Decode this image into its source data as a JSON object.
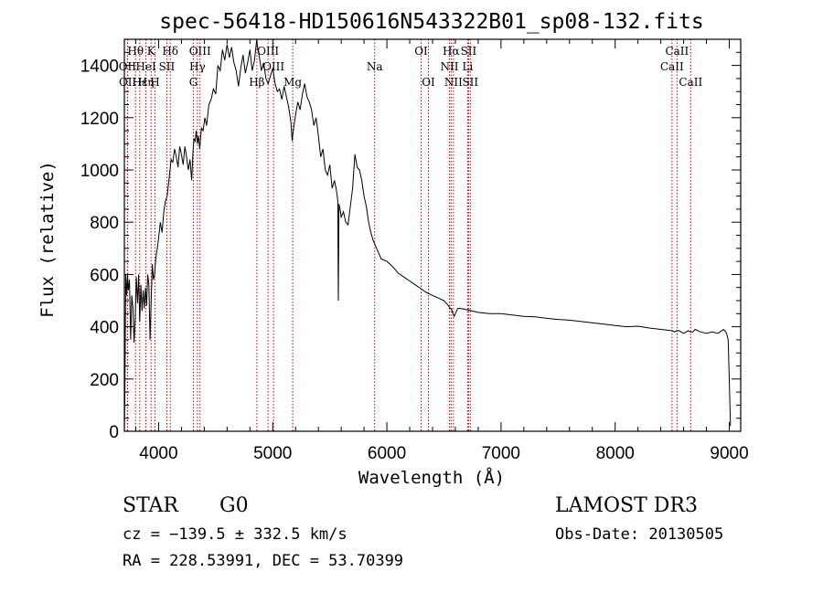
{
  "chart_data": {
    "type": "line",
    "title": "spec-56418-HD150616N543322B01_sp08-132.fits",
    "xlabel": "Wavelength (Å)",
    "ylabel": "Flux (relative)",
    "xlim": [
      3700,
      9100
    ],
    "ylim": [
      0,
      1500
    ],
    "xticks": [
      4000,
      5000,
      6000,
      7000,
      8000,
      9000
    ],
    "yticks": [
      0,
      200,
      400,
      600,
      800,
      1000,
      1200,
      1400
    ],
    "series": [
      {
        "name": "flux",
        "x": [
          3700,
          3705,
          3712,
          3720,
          3728,
          3735,
          3745,
          3755,
          3765,
          3775,
          3785,
          3795,
          3805,
          3815,
          3825,
          3835,
          3845,
          3855,
          3865,
          3875,
          3885,
          3895,
          3905,
          3915,
          3925,
          3935,
          3945,
          3955,
          3965,
          3975,
          3985,
          3995,
          4005,
          4015,
          4030,
          4045,
          4060,
          4075,
          4090,
          4100,
          4110,
          4125,
          4140,
          4155,
          4170,
          4185,
          4200,
          4215,
          4230,
          4245,
          4260,
          4275,
          4290,
          4300,
          4310,
          4320,
          4330,
          4340,
          4350,
          4360,
          4375,
          4390,
          4405,
          4420,
          4440,
          4460,
          4480,
          4500,
          4520,
          4540,
          4560,
          4580,
          4600,
          4620,
          4640,
          4660,
          4680,
          4700,
          4720,
          4740,
          4760,
          4780,
          4800,
          4820,
          4840,
          4860,
          4870,
          4880,
          4900,
          4920,
          4940,
          4960,
          4980,
          5000,
          5020,
          5040,
          5060,
          5080,
          5100,
          5120,
          5140,
          5160,
          5170,
          5180,
          5200,
          5220,
          5240,
          5260,
          5280,
          5300,
          5320,
          5340,
          5360,
          5380,
          5400,
          5420,
          5440,
          5460,
          5480,
          5500,
          5520,
          5540,
          5555,
          5565,
          5570,
          5575,
          5580,
          5590,
          5600,
          5620,
          5640,
          5660,
          5680,
          5700,
          5720,
          5740,
          5760,
          5780,
          5800,
          5820,
          5840,
          5860,
          5880,
          5900,
          5920,
          5950,
          6000,
          6050,
          6100,
          6150,
          6200,
          6250,
          6300,
          6350,
          6400,
          6450,
          6500,
          6540,
          6555,
          6565,
          6575,
          6590,
          6620,
          6650,
          6700,
          6750,
          6800,
          6900,
          7000,
          7100,
          7200,
          7300,
          7400,
          7500,
          7600,
          7700,
          7800,
          7900,
          8000,
          8100,
          8200,
          8300,
          8400,
          8500,
          8520,
          8540,
          8560,
          8600,
          8640,
          8660,
          8680,
          8700,
          8750,
          8800,
          8850,
          8900,
          8950,
          8970,
          8980,
          8990,
          9000,
          9010
        ],
        "y": [
          0,
          160,
          600,
          520,
          600,
          540,
          580,
          350,
          520,
          470,
          340,
          440,
          590,
          490,
          600,
          420,
          560,
          460,
          540,
          470,
          550,
          480,
          600,
          560,
          350,
          500,
          640,
          580,
          600,
          660,
          690,
          720,
          760,
          800,
          760,
          840,
          880,
          900,
          960,
          1000,
          1040,
          1030,
          1080,
          1050,
          1010,
          1090,
          1060,
          1020,
          1090,
          1050,
          1000,
          1040,
          960,
          1060,
          1120,
          1110,
          1150,
          1100,
          1130,
          1080,
          1160,
          1150,
          1200,
          1170,
          1250,
          1270,
          1310,
          1290,
          1400,
          1380,
          1460,
          1420,
          1480,
          1430,
          1470,
          1410,
          1380,
          1320,
          1390,
          1440,
          1370,
          1410,
          1460,
          1380,
          1420,
          1500,
          1460,
          1440,
          1380,
          1410,
          1350,
          1330,
          1360,
          1390,
          1330,
          1300,
          1310,
          1270,
          1320,
          1280,
          1240,
          1180,
          1110,
          1150,
          1210,
          1260,
          1230,
          1290,
          1330,
          1280,
          1260,
          1230,
          1170,
          1200,
          1130,
          1050,
          1080,
          1000,
          980,
          1020,
          930,
          960,
          930,
          900,
          880,
          500,
          870,
          850,
          820,
          840,
          800,
          790,
          860,
          930,
          1060,
          1010,
          1000,
          960,
          900,
          860,
          800,
          760,
          730,
          710,
          690,
          660,
          650,
          630,
          605,
          590,
          575,
          560,
          545,
          530,
          520,
          510,
          500,
          480,
          470,
          470,
          455,
          440,
          470,
          470,
          465,
          460,
          455,
          450,
          450,
          445,
          440,
          438,
          432,
          428,
          425,
          420,
          415,
          410,
          405,
          400,
          402,
          395,
          390,
          385,
          380,
          385,
          385,
          375,
          385,
          380,
          380,
          390,
          380,
          375,
          380,
          375,
          390,
          380,
          370,
          350,
          200,
          20
        ]
      }
    ],
    "spectral_lines": [
      {
        "label": "Hθ",
        "wavelength": 3798,
        "row": 0
      },
      {
        "label": "K",
        "wavelength": 3934,
        "row": 0
      },
      {
        "label": "Hδ",
        "wavelength": 4102,
        "row": 0
      },
      {
        "label": "OIII",
        "wavelength": 4363,
        "row": 0
      },
      {
        "label": "OIII",
        "wavelength": 4959,
        "row": 0
      },
      {
        "label": "OI",
        "wavelength": 6300,
        "row": 0
      },
      {
        "label": "Hα",
        "wavelength": 6563,
        "row": 0
      },
      {
        "label": "SII",
        "wavelength": 6716,
        "row": 0
      },
      {
        "label": "CaII",
        "wavelength": 8542,
        "row": 0
      },
      {
        "label": "OII",
        "wavelength": 3727,
        "row": 1
      },
      {
        "label": "HeI",
        "wavelength": 3889,
        "row": 1
      },
      {
        "label": "SII",
        "wavelength": 4072,
        "row": 1
      },
      {
        "label": "Hγ",
        "wavelength": 4340,
        "row": 1
      },
      {
        "label": "OIII",
        "wavelength": 5007,
        "row": 1
      },
      {
        "label": "Na",
        "wavelength": 5893,
        "row": 1
      },
      {
        "label": "NII",
        "wavelength": 6548,
        "row": 1
      },
      {
        "label": "Li",
        "wavelength": 6708,
        "row": 1
      },
      {
        "label": "CaII",
        "wavelength": 8498,
        "row": 1
      },
      {
        "label": "OII",
        "wavelength": 3729,
        "row": 2
      },
      {
        "label": "Hε",
        "wavelength": 3835,
        "row": 2
      },
      {
        "label": "Hη",
        "wavelength": 3889,
        "row": 2
      },
      {
        "label": "H",
        "wavelength": 3968,
        "row": 2
      },
      {
        "label": "G",
        "wavelength": 4305,
        "row": 2
      },
      {
        "label": "Hβ",
        "wavelength": 4861,
        "row": 2
      },
      {
        "label": "Mg",
        "wavelength": 5175,
        "row": 2
      },
      {
        "label": "OI",
        "wavelength": 6364,
        "row": 2
      },
      {
        "label": "NII",
        "wavelength": 6583,
        "row": 2
      },
      {
        "label": "SII",
        "wavelength": 6731,
        "row": 2
      },
      {
        "label": "CaII",
        "wavelength": 8662,
        "row": 2
      }
    ]
  },
  "info": {
    "object_class": "STAR",
    "subclass": "G0",
    "survey": "LAMOST DR3",
    "redshift_text": "cz = −139.5 ± 332.5 km/s",
    "obs_date": "Obs-Date: 20130505",
    "coords": "RA = 228.53991, DEC =  53.70399"
  },
  "colors": {
    "spectrum": "#000000",
    "line_markers": "#cc0000",
    "axis": "#000000",
    "background": "#ffffff"
  }
}
